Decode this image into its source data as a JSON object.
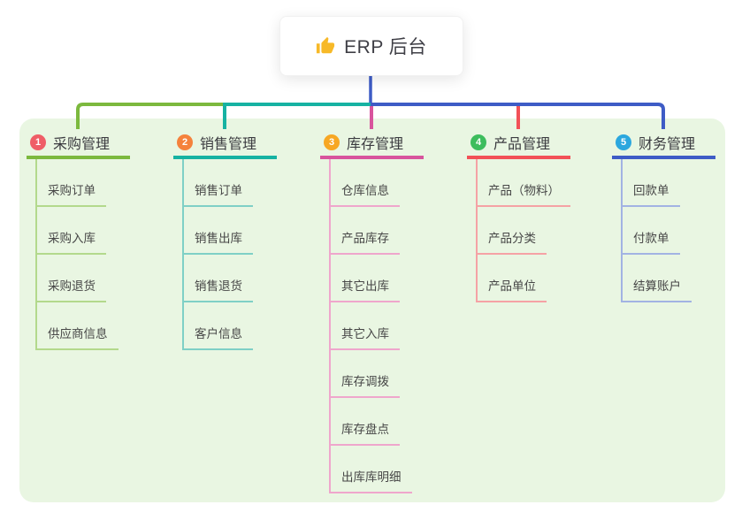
{
  "root": {
    "label": "ERP 后台",
    "icon": "thumbs-up-icon",
    "icon_color": "#f7b928",
    "stem_color": "#3e5cc6"
  },
  "panel_color": "#e9f6e2",
  "branches": [
    {
      "index": "1",
      "label": "采购管理",
      "badge_color": "#ef5e67",
      "line_color": "#7cb93e",
      "light_line_color": "#b3d98c",
      "children": [
        "采购订单",
        "采购入库",
        "采购退货",
        "供应商信息"
      ]
    },
    {
      "index": "2",
      "label": "销售管理",
      "badge_color": "#f5823c",
      "line_color": "#16b2a2",
      "light_line_color": "#7fd0c6",
      "children": [
        "销售订单",
        "销售出库",
        "销售退货",
        "客户信息"
      ]
    },
    {
      "index": "3",
      "label": "库存管理",
      "badge_color": "#f7a723",
      "line_color": "#d8549d",
      "light_line_color": "#efa6cc",
      "children": [
        "仓库信息",
        "产品库存",
        "其它出库",
        "其它入库",
        "库存调拨",
        "库存盘点",
        "出库库明细"
      ]
    },
    {
      "index": "4",
      "label": "产品管理",
      "badge_color": "#3dbd5d",
      "line_color": "#f25157",
      "light_line_color": "#f5a2a5",
      "children": [
        "产品（物料）",
        "产品分类",
        "产品单位"
      ]
    },
    {
      "index": "5",
      "label": "财务管理",
      "badge_color": "#2ba7de",
      "line_color": "#3e5cc6",
      "light_line_color": "#a2b3e3",
      "children": [
        "回款单",
        "付款单",
        "结算账户"
      ]
    }
  ]
}
